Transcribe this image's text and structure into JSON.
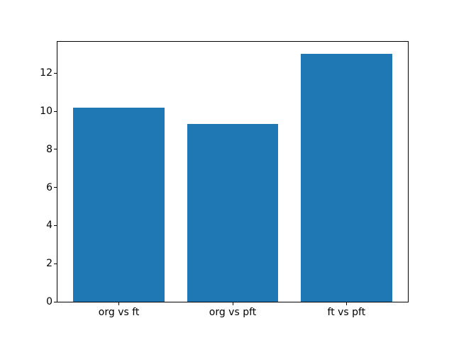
{
  "chart_data": {
    "type": "bar",
    "title": "",
    "xlabel": "",
    "ylabel": "",
    "categories": [
      "org vs ft",
      "org vs pft",
      "ft vs pft"
    ],
    "values": [
      10.2,
      9.33,
      13.0
    ],
    "yticks": [
      0,
      2,
      4,
      6,
      8,
      10,
      12
    ],
    "ytick_labels": [
      "0",
      "2",
      "4",
      "6",
      "8",
      "10",
      "12"
    ],
    "ylim": [
      0,
      13.65
    ],
    "xlim": [
      -0.54,
      2.54
    ],
    "bar_width_units": 0.8,
    "bar_color": "#1f77b4",
    "background_color": "#ffffff",
    "spine_color": "#000000",
    "grid": false,
    "legend": false
  }
}
